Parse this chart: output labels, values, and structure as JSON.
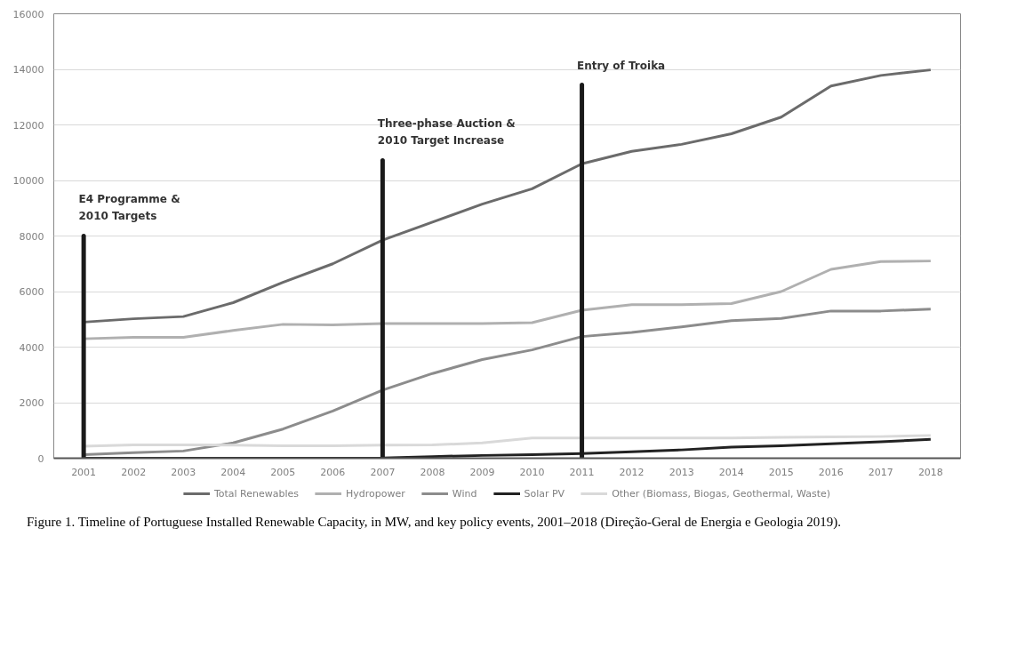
{
  "chart_data": {
    "type": "line",
    "categories": [
      "2001",
      "2002",
      "2003",
      "2004",
      "2005",
      "2006",
      "2007",
      "2008",
      "2009",
      "2010",
      "2011",
      "2012",
      "2013",
      "2014",
      "2015",
      "2016",
      "2017",
      "2018"
    ],
    "ylim": [
      0,
      16000
    ],
    "yticks": [
      0,
      2000,
      4000,
      6000,
      8000,
      10000,
      12000,
      14000,
      16000
    ],
    "grid": "y",
    "legend": "bottom",
    "marker": "none",
    "line_style": "solid",
    "series": [
      {
        "name": "Total Renewables",
        "color": "#6b6b6b",
        "values": [
          4900,
          5020,
          5100,
          5600,
          6330,
          7000,
          7850,
          8500,
          9150,
          9700,
          10600,
          11050,
          11300,
          11680,
          12280,
          13400,
          13780,
          13980
        ]
      },
      {
        "name": "Hydropower",
        "color": "#b0b0b0",
        "values": [
          4300,
          4350,
          4350,
          4600,
          4820,
          4800,
          4850,
          4850,
          4850,
          4880,
          5330,
          5530,
          5530,
          5570,
          6000,
          6800,
          7080,
          7100
        ]
      },
      {
        "name": "Wind",
        "color": "#8c8c8c",
        "values": [
          130,
          200,
          260,
          550,
          1050,
          1700,
          2450,
          3050,
          3550,
          3900,
          4380,
          4530,
          4730,
          4950,
          5030,
          5300,
          5300,
          5370
        ]
      },
      {
        "name": "Solar PV",
        "color": "#222222",
        "values": [
          0,
          0,
          0,
          0,
          0,
          0,
          10,
          60,
          100,
          130,
          170,
          230,
          300,
          400,
          450,
          520,
          590,
          680
        ]
      },
      {
        "name": "Other (Biomass, Biogas, Geothermal, Waste)",
        "color": "#d9d9d9",
        "values": [
          430,
          480,
          480,
          470,
          450,
          450,
          470,
          480,
          550,
          730,
          730,
          730,
          730,
          730,
          750,
          770,
          780,
          820
        ]
      }
    ],
    "ref_lines": [
      {
        "axis": "x",
        "value": "2001",
        "label": "E4 Programme &\n2010 Targets",
        "color": "#1a1a1a"
      },
      {
        "axis": "x",
        "value": "2007",
        "label": "Three-phase Auction &\n2010 Target Increase",
        "color": "#1a1a1a"
      },
      {
        "axis": "x",
        "value": "2011",
        "label": "Entry of Troika",
        "color": "#1a1a1a"
      }
    ],
    "annotations": [
      "Figure 1. Timeline of Portuguese Installed Renewable Capacity, in MW, and key policy events, 2001–2018 (Direção-Geral de Energia e Geologia 2019)."
    ]
  }
}
